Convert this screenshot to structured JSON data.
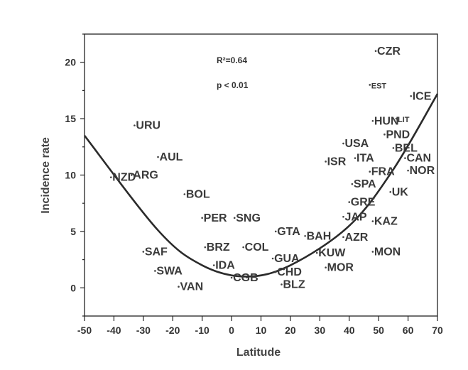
{
  "chart_data": {
    "type": "scatter",
    "xlabel": "Latitude",
    "ylabel": "Incidence rate",
    "xlim": [
      -50,
      70
    ],
    "ylim": [
      -2.5,
      22.5
    ],
    "xticks": [
      -50,
      -40,
      -30,
      -20,
      -10,
      0,
      10,
      20,
      30,
      40,
      50,
      60,
      70
    ],
    "yticks": [
      0,
      5,
      10,
      15,
      20
    ],
    "grid": false,
    "annotations": [
      "R²=0.64",
      "p < 0.01"
    ],
    "fit_curve": {
      "type": "quadratic",
      "points": [
        [
          -50,
          13.5
        ],
        [
          -25,
          5.1
        ],
        [
          -10,
          2.0
        ],
        [
          5,
          1.0
        ],
        [
          20,
          2.0
        ],
        [
          40,
          5.5
        ],
        [
          55,
          10.5
        ],
        [
          70,
          17.2
        ]
      ]
    },
    "points": [
      {
        "label": "CZR",
        "x": 49,
        "y": 21.0,
        "small": false
      },
      {
        "label": "EST",
        "x": 47,
        "y": 18.0,
        "small": true
      },
      {
        "label": "ICE",
        "x": 61,
        "y": 17.0,
        "small": false
      },
      {
        "label": "HUN",
        "x": 48,
        "y": 14.8,
        "small": false
      },
      {
        "label": "LIT",
        "x": 56,
        "y": 15.0,
        "small": true
      },
      {
        "label": "URU",
        "x": -33,
        "y": 14.4,
        "small": false
      },
      {
        "label": "PND",
        "x": 52,
        "y": 13.6,
        "small": false
      },
      {
        "label": "USA",
        "x": 38,
        "y": 12.8,
        "small": false
      },
      {
        "label": "BEL",
        "x": 55,
        "y": 12.4,
        "small": false
      },
      {
        "label": "AUL",
        "x": -25,
        "y": 11.6,
        "small": false
      },
      {
        "label": "CAN",
        "x": 59,
        "y": 11.5,
        "small": false
      },
      {
        "label": "ISR",
        "x": 32,
        "y": 11.2,
        "small": false
      },
      {
        "label": "ITA",
        "x": 42,
        "y": 11.5,
        "small": false
      },
      {
        "label": "FRA",
        "x": 47,
        "y": 10.3,
        "small": false
      },
      {
        "label": "NOR",
        "x": 60,
        "y": 10.4,
        "small": false
      },
      {
        "label": "NZD",
        "x": -41,
        "y": 9.8,
        "small": false
      },
      {
        "label": "ARG",
        "x": -34,
        "y": 10.0,
        "small": false
      },
      {
        "label": "SPA",
        "x": 41,
        "y": 9.2,
        "small": false
      },
      {
        "label": "UK",
        "x": 54,
        "y": 8.5,
        "small": false
      },
      {
        "label": "BOL",
        "x": -16,
        "y": 8.3,
        "small": false
      },
      {
        "label": "GRE",
        "x": 40,
        "y": 7.6,
        "small": false
      },
      {
        "label": "JAP",
        "x": 38,
        "y": 6.3,
        "small": false
      },
      {
        "label": "PER",
        "x": -10,
        "y": 6.2,
        "small": false
      },
      {
        "label": "SNG",
        "x": 1,
        "y": 6.2,
        "small": false
      },
      {
        "label": "KAZ",
        "x": 48,
        "y": 5.9,
        "small": false
      },
      {
        "label": "GTA",
        "x": 15,
        "y": 5.0,
        "small": false
      },
      {
        "label": "BAH",
        "x": 25,
        "y": 4.6,
        "small": false
      },
      {
        "label": "AZR",
        "x": 38,
        "y": 4.5,
        "small": false
      },
      {
        "label": "BRZ",
        "x": -9,
        "y": 3.6,
        "small": false
      },
      {
        "label": "COL",
        "x": 4,
        "y": 3.6,
        "small": false
      },
      {
        "label": "SAF",
        "x": -30,
        "y": 3.2,
        "small": false
      },
      {
        "label": "MON",
        "x": 48,
        "y": 3.2,
        "small": false
      },
      {
        "label": "KUW",
        "x": 29,
        "y": 3.1,
        "small": false
      },
      {
        "label": "GUA",
        "x": 14,
        "y": 2.6,
        "small": false
      },
      {
        "label": "IDA",
        "x": -6,
        "y": 2.0,
        "small": false
      },
      {
        "label": "MOR",
        "x": 32,
        "y": 1.8,
        "small": false
      },
      {
        "label": "SWA",
        "x": -26,
        "y": 1.5,
        "small": false
      },
      {
        "label": "CHD",
        "x": 15,
        "y": 1.4,
        "small": false
      },
      {
        "label": "CGB",
        "x": 0,
        "y": 0.9,
        "small": false
      },
      {
        "label": "VAN",
        "x": -18,
        "y": 0.1,
        "small": false
      },
      {
        "label": "BLZ",
        "x": 17,
        "y": 0.3,
        "small": false
      }
    ]
  }
}
